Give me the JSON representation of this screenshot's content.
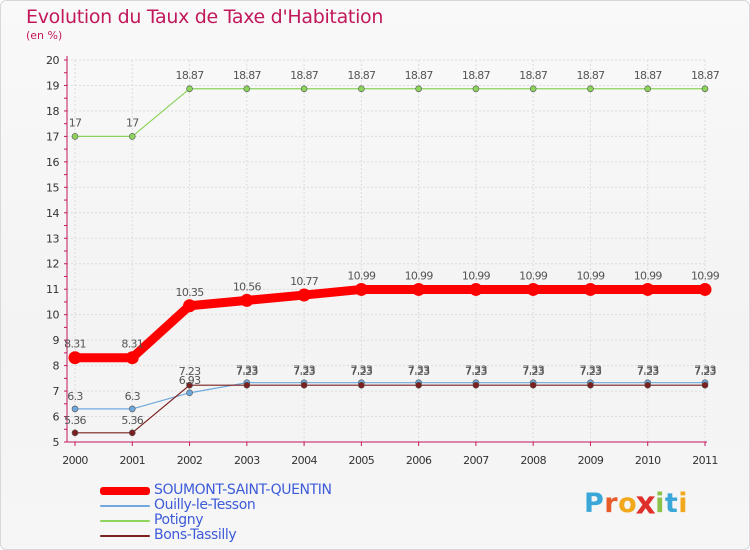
{
  "header": {
    "title": "Evolution du Taux de Taxe d'Habitation",
    "unit": "(en %)"
  },
  "logo": {
    "letters": [
      "P",
      "r",
      "o",
      "x",
      "i",
      "t",
      "i"
    ],
    "colors": [
      "#3ba7d8",
      "#e85c2b",
      "#f2a81d",
      "#e0302c",
      "#8bc34a",
      "#3ba7d8",
      "#f2a81d"
    ]
  },
  "chart_data": {
    "type": "line",
    "title": "Evolution du Taux de Taxe d'Habitation",
    "ylabel": "(en %)",
    "xlabel": "",
    "ylim": [
      5,
      20
    ],
    "yticks": [
      5,
      6,
      7,
      8,
      9,
      10,
      11,
      12,
      13,
      14,
      15,
      16,
      17,
      18,
      19,
      20
    ],
    "x": [
      "2000",
      "2001",
      "2002",
      "2003",
      "2004",
      "2005",
      "2006",
      "2007",
      "2008",
      "2009",
      "2010",
      "2011"
    ],
    "grid": true,
    "series": [
      {
        "name": "SOUMONT-SAINT-QUENTIN",
        "color": "#ff0000",
        "values": [
          8.31,
          8.31,
          10.35,
          10.56,
          10.77,
          10.99,
          10.99,
          10.99,
          10.99,
          10.99,
          10.99,
          10.99
        ],
        "labels": [
          "8.31",
          "8.31",
          "10.35",
          "10.56",
          "10.77",
          "10.99",
          "10.99",
          "10.99",
          "10.99",
          "10.99",
          "10.99",
          "10.99"
        ]
      },
      {
        "name": "Ouilly-le-Tesson",
        "color": "#6fa8dc",
        "values": [
          6.3,
          6.3,
          6.93,
          7.33,
          7.33,
          7.33,
          7.33,
          7.33,
          7.33,
          7.33,
          7.33,
          7.33
        ],
        "labels": [
          "6.3",
          "6.3",
          "6.93",
          "7.33",
          "7.33",
          "7.33",
          "7.33",
          "7.33",
          "7.33",
          "7.33",
          "7.33",
          "7.33"
        ]
      },
      {
        "name": "Potigny",
        "color": "#8cd45b",
        "values": [
          17,
          17,
          18.87,
          18.87,
          18.87,
          18.87,
          18.87,
          18.87,
          18.87,
          18.87,
          18.87,
          18.87
        ],
        "labels": [
          "17",
          "17",
          "18.87",
          "18.87",
          "18.87",
          "18.87",
          "18.87",
          "18.87",
          "18.87",
          "18.87",
          "18.87",
          "18.87"
        ]
      },
      {
        "name": "Bons-Tassilly",
        "color": "#7b1f1f",
        "values": [
          5.36,
          5.36,
          7.23,
          7.23,
          7.23,
          7.23,
          7.23,
          7.23,
          7.23,
          7.23,
          7.23,
          7.23
        ],
        "labels": [
          "5.36",
          "5.36",
          "7.23",
          "7.23",
          "7.23",
          "7.23",
          "7.23",
          "7.23",
          "7.23",
          "7.23",
          "7.23",
          "7.23"
        ]
      }
    ]
  }
}
